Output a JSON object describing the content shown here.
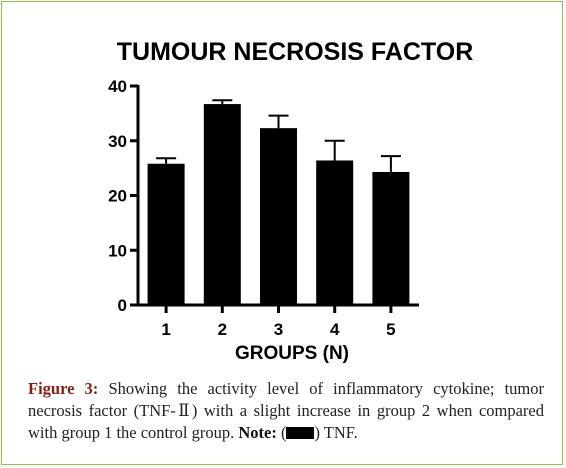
{
  "chart_data": {
    "type": "bar",
    "title": "TUMOUR NECROSIS FACTOR",
    "xlabel": "GROUPS (N)",
    "ylabel": "",
    "categories": [
      "1",
      "2",
      "3",
      "4",
      "5"
    ],
    "values": [
      25.8,
      36.7,
      32.3,
      26.4,
      24.3
    ],
    "errors": [
      1.0,
      0.7,
      2.3,
      3.6,
      2.9
    ],
    "ylim": [
      0,
      40
    ],
    "yticks": [
      0,
      10,
      20,
      30,
      40
    ],
    "grid": false,
    "bar_color": "#000000"
  },
  "caption": {
    "label": "Figure 3:",
    "text": "Showing the activity level of inflammatory cytokine; tumor necrosis factor (TNF-Ⅱ) with a slight increase in group 2 when compared with group 1 the control group.",
    "note_label": "Note:",
    "note_open": "(",
    "note_close": ") TNF."
  },
  "colors": {
    "frame_border": "#8bc34a",
    "caption_label": "#8a1c16"
  }
}
